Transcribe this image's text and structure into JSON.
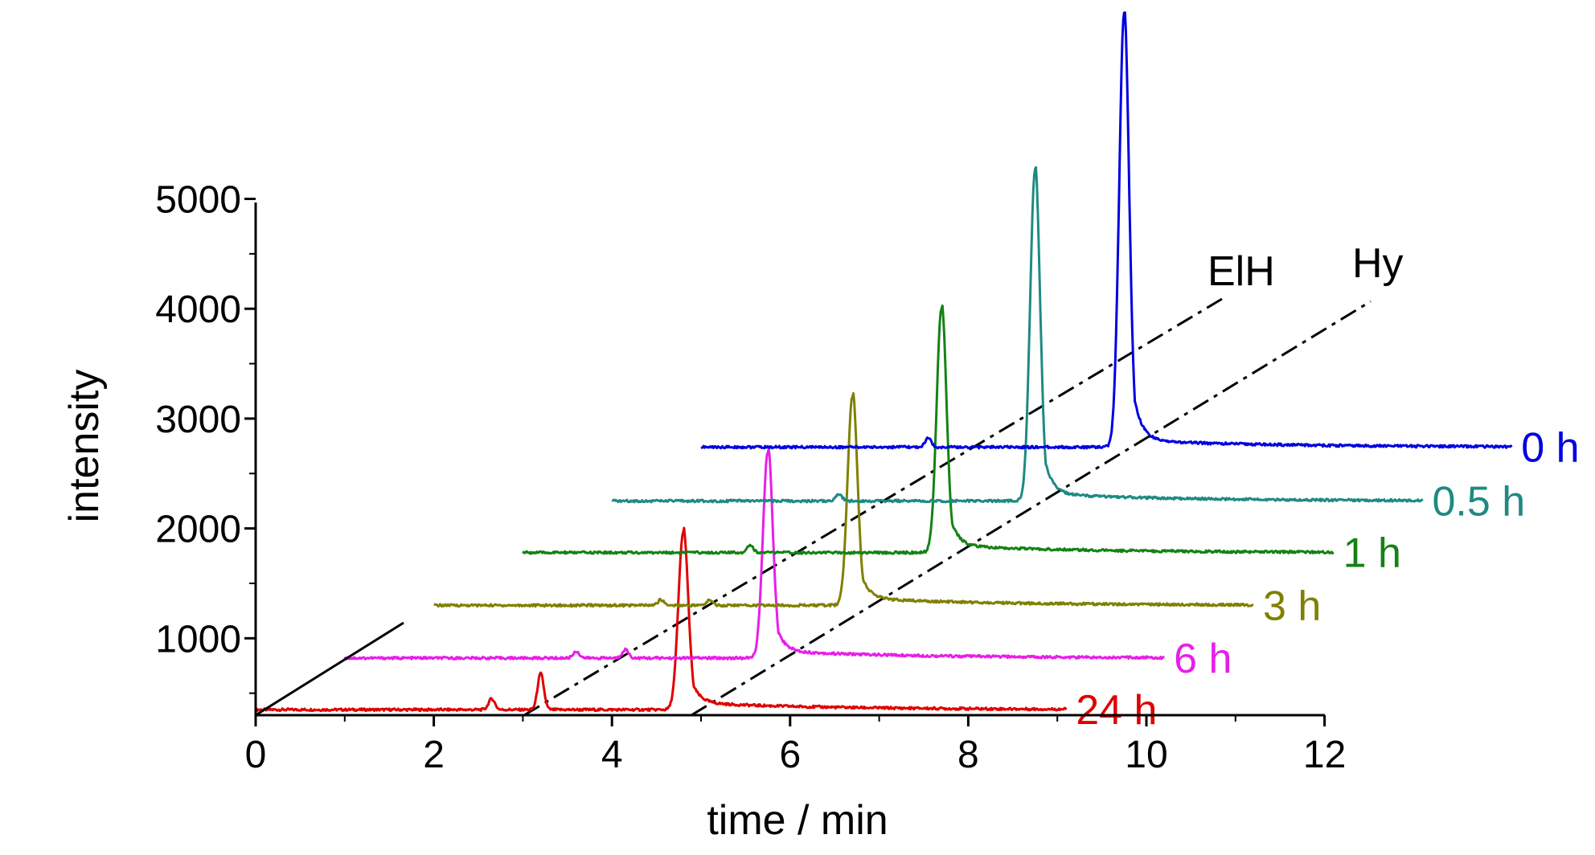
{
  "chart_data": {
    "type": "line",
    "xlabel": "time / min",
    "ylabel": "intensity",
    "xlim": [
      0,
      12
    ],
    "ylim": [
      300,
      5500
    ],
    "x_ticks": [
      "0",
      "2",
      "4",
      "6",
      "8",
      "10",
      "12"
    ],
    "y_ticks": [
      "1000",
      "2000",
      "3000",
      "4000",
      "5000"
    ],
    "style": "waterfall stacked chromatograms, each trace offset to the right and upward",
    "series": [
      {
        "name": "24 h",
        "color": "#e00000",
        "x_offset_min": 0,
        "baseline": 350,
        "x_end": 9.1,
        "peaks": [
          {
            "x": 2.65,
            "height": 450
          },
          {
            "x": 3.2,
            "height": 680
          },
          {
            "x": 4.8,
            "height": 1960
          }
        ]
      },
      {
        "name": "6 h",
        "color": "#e81ee8",
        "x_offset_min": 1,
        "baseline": 820,
        "x_end": 10.2,
        "peaks": [
          {
            "x": 3.6,
            "height": 880
          },
          {
            "x": 4.15,
            "height": 900
          },
          {
            "x": 5.75,
            "height": 2700
          }
        ]
      },
      {
        "name": "3 h",
        "color": "#808000",
        "x_offset_min": 2,
        "baseline": 1300,
        "x_end": 11.2,
        "peaks": [
          {
            "x": 4.55,
            "height": 1350
          },
          {
            "x": 5.1,
            "height": 1350
          },
          {
            "x": 6.7,
            "height": 3200
          }
        ]
      },
      {
        "name": "1 h",
        "color": "#148214",
        "x_offset_min": 3,
        "baseline": 1780,
        "x_end": 12.1,
        "peaks": [
          {
            "x": 5.55,
            "height": 1850
          },
          {
            "x": 7.7,
            "height": 4000
          }
        ]
      },
      {
        "name": "0.5 h",
        "color": "#1e8a82",
        "x_offset_min": 4,
        "baseline": 2250,
        "x_end": 13.1,
        "peaks": [
          {
            "x": 6.55,
            "height": 2310
          },
          {
            "x": 8.75,
            "height": 5270
          }
        ]
      },
      {
        "name": "0 h",
        "color": "#0000e0",
        "x_offset_min": 5,
        "baseline": 2740,
        "x_end": 14.1,
        "peaks": [
          {
            "x": 7.55,
            "height": 2820
          },
          {
            "x": 9.75,
            "height": 6700
          }
        ]
      }
    ],
    "peak_labels": [
      {
        "label": "ElH"
      },
      {
        "label": "Hy"
      }
    ]
  }
}
